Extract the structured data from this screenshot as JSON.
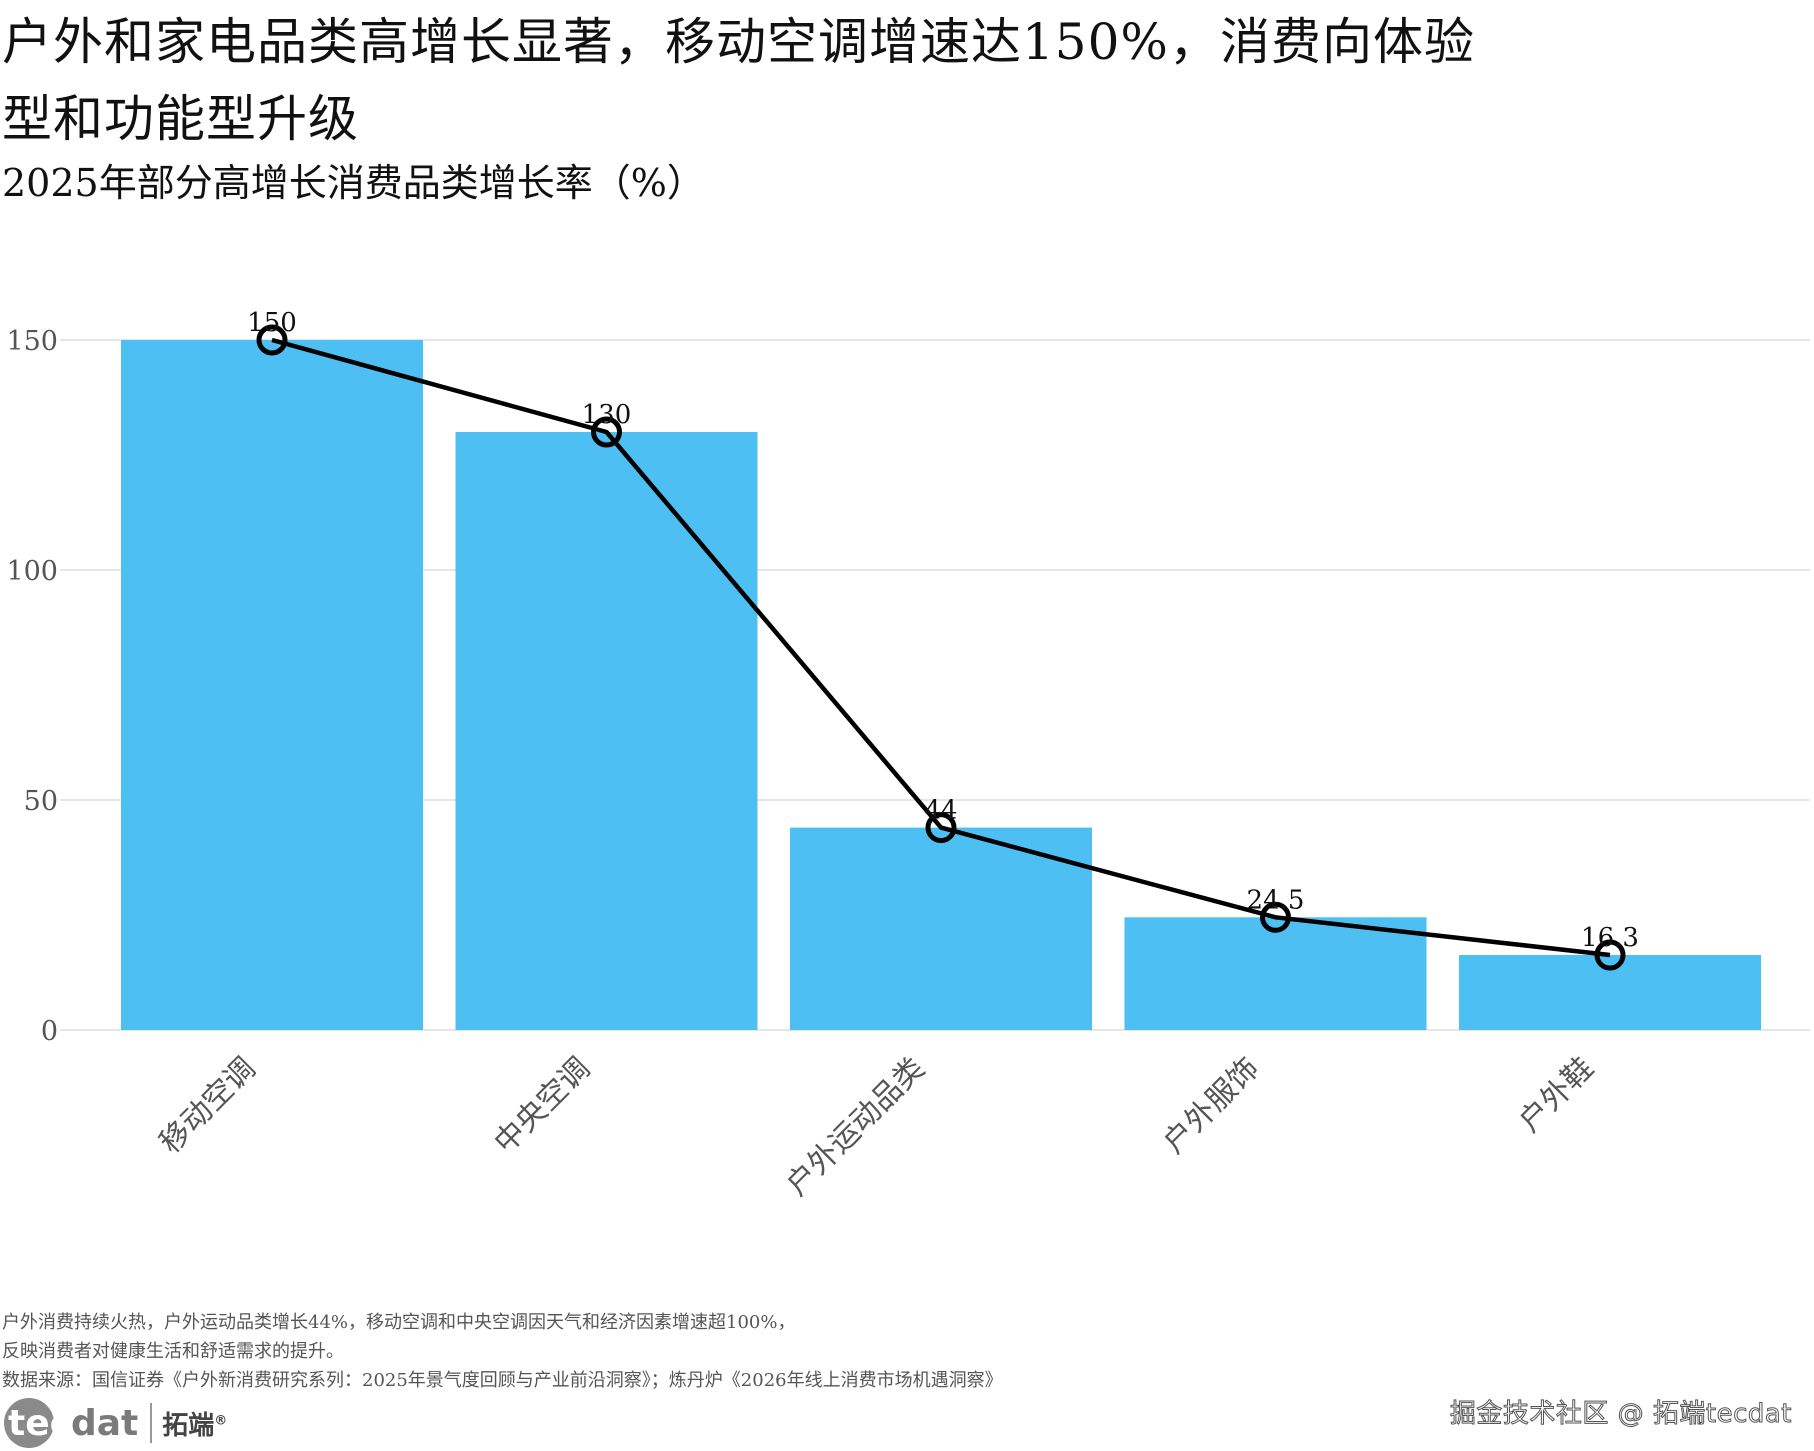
{
  "title": "户外和家电品类高增长显著，移动空调增速达150%，消费向体验型和功能型升级",
  "subtitle": "2025年部分高增长消费品类增长率（%）",
  "notes": [
    "户外消费持续火热，户外运动品类增长44%，移动空调和中央空调因天气和经济因素增速超100%，",
    "反映消费者对健康生活和舒适需求的提升。",
    "数据来源：国信证券《户外新消费研究系列：2025年景气度回顾与产业前沿洞察》；炼丹炉《2026年线上消费市场机遇洞察》"
  ],
  "logo": {
    "brand_prefix": "tec",
    "brand_suffix": "dat",
    "cn": "拓端",
    "mark": "®"
  },
  "watermark": "掘金技术社区 @ 拓端tecdat",
  "colors": {
    "bar": "#4dbff2",
    "line": "#000000",
    "grid": "#e6e6e6",
    "axis_text": "#555555"
  },
  "chart_data": {
    "type": "bar",
    "categories": [
      "移动空调",
      "中央空调",
      "户外运动品类",
      "户外服饰",
      "户外鞋"
    ],
    "values": [
      150,
      130,
      44,
      24.5,
      16.3
    ],
    "data_labels": [
      "150",
      "130",
      "44",
      "24.5",
      "16.3"
    ],
    "overlay": "line-with-circle-markers",
    "ylim": [
      0,
      150
    ],
    "yticks": [
      0,
      50,
      100,
      150
    ],
    "xlabel": "",
    "ylabel": "",
    "grid": "horizontal"
  }
}
